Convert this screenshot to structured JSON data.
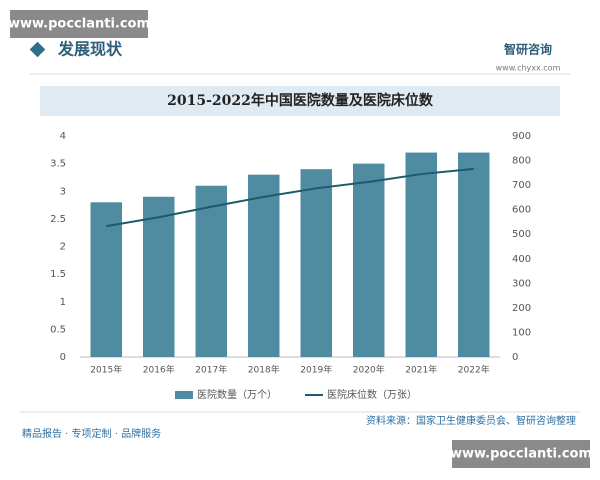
{
  "watermark": "www.pocclanti.com",
  "header": {
    "title": "发展现状",
    "brand": "智研咨询",
    "site": "www.chyxx.com"
  },
  "chart_data": {
    "type": "bar",
    "title": "2015-2022年中国医院数量及医院床位数",
    "categories": [
      "2015年",
      "2016年",
      "2017年",
      "2018年",
      "2019年",
      "2020年",
      "2021年",
      "2022年"
    ],
    "series": [
      {
        "name": "医院数量（万个）",
        "type": "bar",
        "color": "#4f8ca2",
        "values": [
          2.8,
          2.9,
          3.1,
          3.3,
          3.4,
          3.5,
          3.7,
          3.7
        ]
      },
      {
        "name": "医院床位数（万张）",
        "type": "line",
        "axis": "y2",
        "color": "#1d5a6b",
        "values": [
          533,
          569,
          612,
          652,
          687,
          713,
          745,
          766
        ]
      }
    ],
    "ylim": [
      0,
      4
    ],
    "yticks": [
      0,
      0.5,
      1,
      1.5,
      2,
      2.5,
      3,
      3.5,
      4
    ],
    "y2lim": [
      0,
      900
    ],
    "y2ticks": [
      0,
      100,
      200,
      300,
      400,
      500,
      600,
      700,
      800,
      900
    ],
    "grid": false,
    "legend": "bottom"
  },
  "footer": {
    "source": "资料来源：国家卫生健康委员会、智研咨询整理",
    "slogan": "精品报告 · 专项定制 · 品牌服务"
  }
}
